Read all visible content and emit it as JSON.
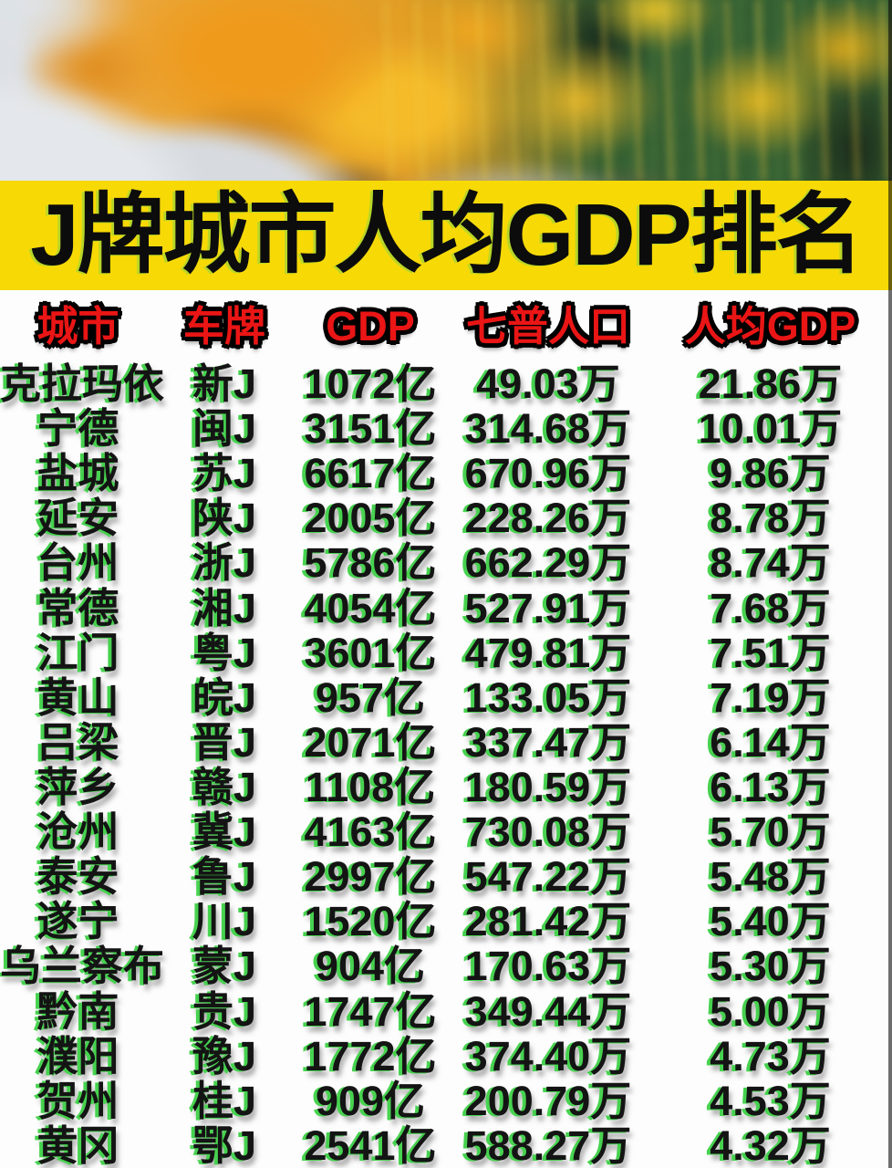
{
  "banner": {
    "title": "J牌城市人均GDP排名"
  },
  "colors": {
    "banner_background": "#f7d906",
    "header_text": "#ea1515",
    "header_outline": "#000000",
    "body_text": "#141414",
    "text_ghost_green": "#47d24f",
    "table_background": "#fdfdfd"
  },
  "chart_data": {
    "type": "table",
    "title": "J牌城市人均GDP排名",
    "columns": [
      "城市",
      "车牌",
      "GDP",
      "七普人口",
      "人均GDP"
    ],
    "rows": [
      [
        "克拉玛依",
        "新J",
        "1072亿",
        "49.03万",
        "21.86万"
      ],
      [
        "宁德",
        "闽J",
        "3151亿",
        "314.68万",
        "10.01万"
      ],
      [
        "盐城",
        "苏J",
        "6617亿",
        "670.96万",
        "9.86万"
      ],
      [
        "延安",
        "陕J",
        "2005亿",
        "228.26万",
        "8.78万"
      ],
      [
        "台州",
        "浙J",
        "5786亿",
        "662.29万",
        "8.74万"
      ],
      [
        "常德",
        "湘J",
        "4054亿",
        "527.91万",
        "7.68万"
      ],
      [
        "江门",
        "粤J",
        "3601亿",
        "479.81万",
        "7.51万"
      ],
      [
        "黄山",
        "皖J",
        "957亿",
        "133.05万",
        "7.19万"
      ],
      [
        "吕梁",
        "晋J",
        "2071亿",
        "337.47万",
        "6.14万"
      ],
      [
        "萍乡",
        "赣J",
        "1108亿",
        "180.59万",
        "6.13万"
      ],
      [
        "沧州",
        "冀J",
        "4163亿",
        "730.08万",
        "5.70万"
      ],
      [
        "泰安",
        "鲁J",
        "2997亿",
        "547.22万",
        "5.48万"
      ],
      [
        "遂宁",
        "川J",
        "1520亿",
        "281.42万",
        "5.40万"
      ],
      [
        "乌兰察布",
        "蒙J",
        "904亿",
        "170.63万",
        "5.30万"
      ],
      [
        "黔南",
        "贵J",
        "1747亿",
        "349.44万",
        "5.00万"
      ],
      [
        "濮阳",
        "豫J",
        "1772亿",
        "374.40万",
        "4.73万"
      ],
      [
        "贺州",
        "桂J",
        "909亿",
        "200.79万",
        "4.53万"
      ],
      [
        "黄冈",
        "鄂J",
        "2541亿",
        "588.27万",
        "4.32万"
      ]
    ]
  }
}
